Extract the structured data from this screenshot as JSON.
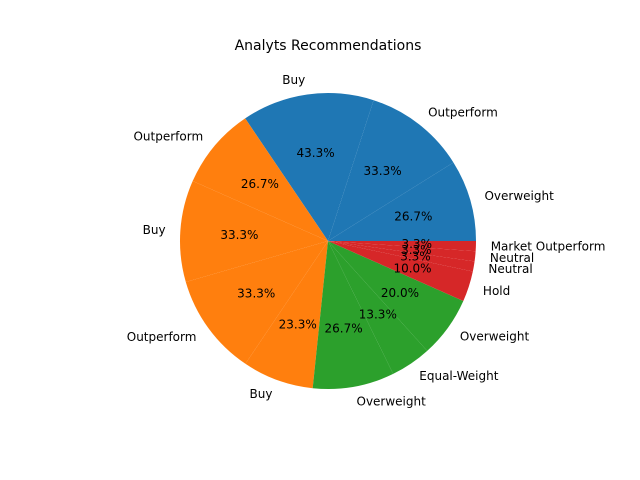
{
  "chart_data": {
    "type": "pie",
    "title": "Analyts Recommendations",
    "colors": [
      "#1f77b4",
      "#ff7f0e",
      "#2ca02c",
      "#d62728"
    ],
    "slices": [
      {
        "label": "Overweight",
        "value": 26.7,
        "pct_text": "26.7%"
      },
      {
        "label": "Outperform",
        "value": 33.3,
        "pct_text": "33.3%"
      },
      {
        "label": "Buy",
        "value": 43.3,
        "pct_text": "43.3%"
      },
      {
        "label": "Outperform",
        "value": 26.7,
        "pct_text": "26.7%"
      },
      {
        "label": "Buy",
        "value": 33.3,
        "pct_text": "33.3%"
      },
      {
        "label": "Outperform",
        "value": 33.3,
        "pct_text": "33.3%"
      },
      {
        "label": "Buy",
        "value": 23.3,
        "pct_text": "23.3%"
      },
      {
        "label": "Overweight",
        "value": 26.7,
        "pct_text": "26.7%"
      },
      {
        "label": "Equal-Weight",
        "value": 13.3,
        "pct_text": "13.3%"
      },
      {
        "label": "Overweight",
        "value": 20.0,
        "pct_text": "20.0%"
      },
      {
        "label": "Hold",
        "value": 10.0,
        "pct_text": "10.0%"
      },
      {
        "label": "Neutral",
        "value": 3.3,
        "pct_text": "3.3%"
      },
      {
        "label": "Neutral",
        "value": 3.3,
        "pct_text": "3.3%"
      },
      {
        "label": "Market Outperform",
        "value": 3.3,
        "pct_text": "3.3%"
      }
    ]
  }
}
